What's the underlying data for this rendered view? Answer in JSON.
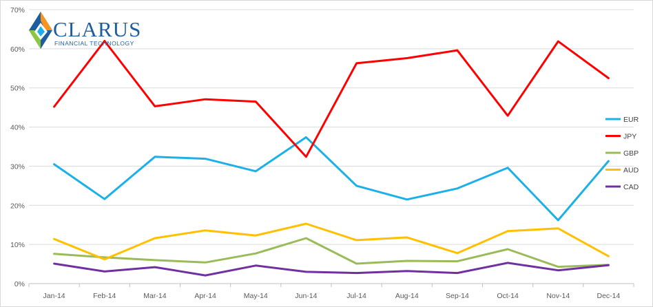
{
  "logo": {
    "word": "CLARUS",
    "subtitle": "FINANCIAL TECHNOLOGY",
    "colors": [
      "#f7941d",
      "#1f5e9e",
      "#8dc63f"
    ]
  },
  "chart_data": {
    "type": "line",
    "categories": [
      "Jan-14",
      "Feb-14",
      "Mar-14",
      "Apr-14",
      "May-14",
      "Jun-14",
      "Jul-14",
      "Aug-14",
      "Sep-14",
      "Oct-14",
      "Nov-14",
      "Dec-14"
    ],
    "ylim": [
      0,
      70
    ],
    "yticks": [
      0,
      10,
      20,
      30,
      40,
      50,
      60,
      70
    ],
    "ytick_labels": [
      "0%",
      "10%",
      "20%",
      "30%",
      "40%",
      "50%",
      "60%",
      "70%"
    ],
    "y_unit": "%",
    "grid": true,
    "legend_position": "right",
    "series": [
      {
        "name": "EUR",
        "color": "#1cb0e8",
        "values": [
          30.5,
          21.6,
          32.4,
          31.9,
          28.7,
          37.4,
          25.0,
          21.5,
          24.3,
          29.6,
          16.2,
          31.3
        ]
      },
      {
        "name": "JPY",
        "color": "#ff0000",
        "values": [
          45.2,
          62.0,
          45.3,
          47.1,
          46.5,
          32.4,
          56.3,
          57.6,
          59.6,
          42.9,
          61.9,
          52.5
        ]
      },
      {
        "name": "GBP",
        "color": "#9bbb59",
        "values": [
          7.6,
          6.7,
          6.0,
          5.4,
          7.7,
          11.6,
          5.1,
          5.8,
          5.7,
          8.8,
          4.3,
          4.8
        ]
      },
      {
        "name": "AUD",
        "color": "#ffc000",
        "values": [
          11.4,
          6.2,
          11.6,
          13.6,
          12.3,
          15.3,
          11.1,
          11.8,
          7.8,
          13.4,
          14.1,
          7.0
        ]
      },
      {
        "name": "CAD",
        "color": "#7030a0",
        "values": [
          5.1,
          3.1,
          4.2,
          2.1,
          4.6,
          3.0,
          2.7,
          3.2,
          2.7,
          5.3,
          3.4,
          4.7
        ]
      }
    ]
  }
}
